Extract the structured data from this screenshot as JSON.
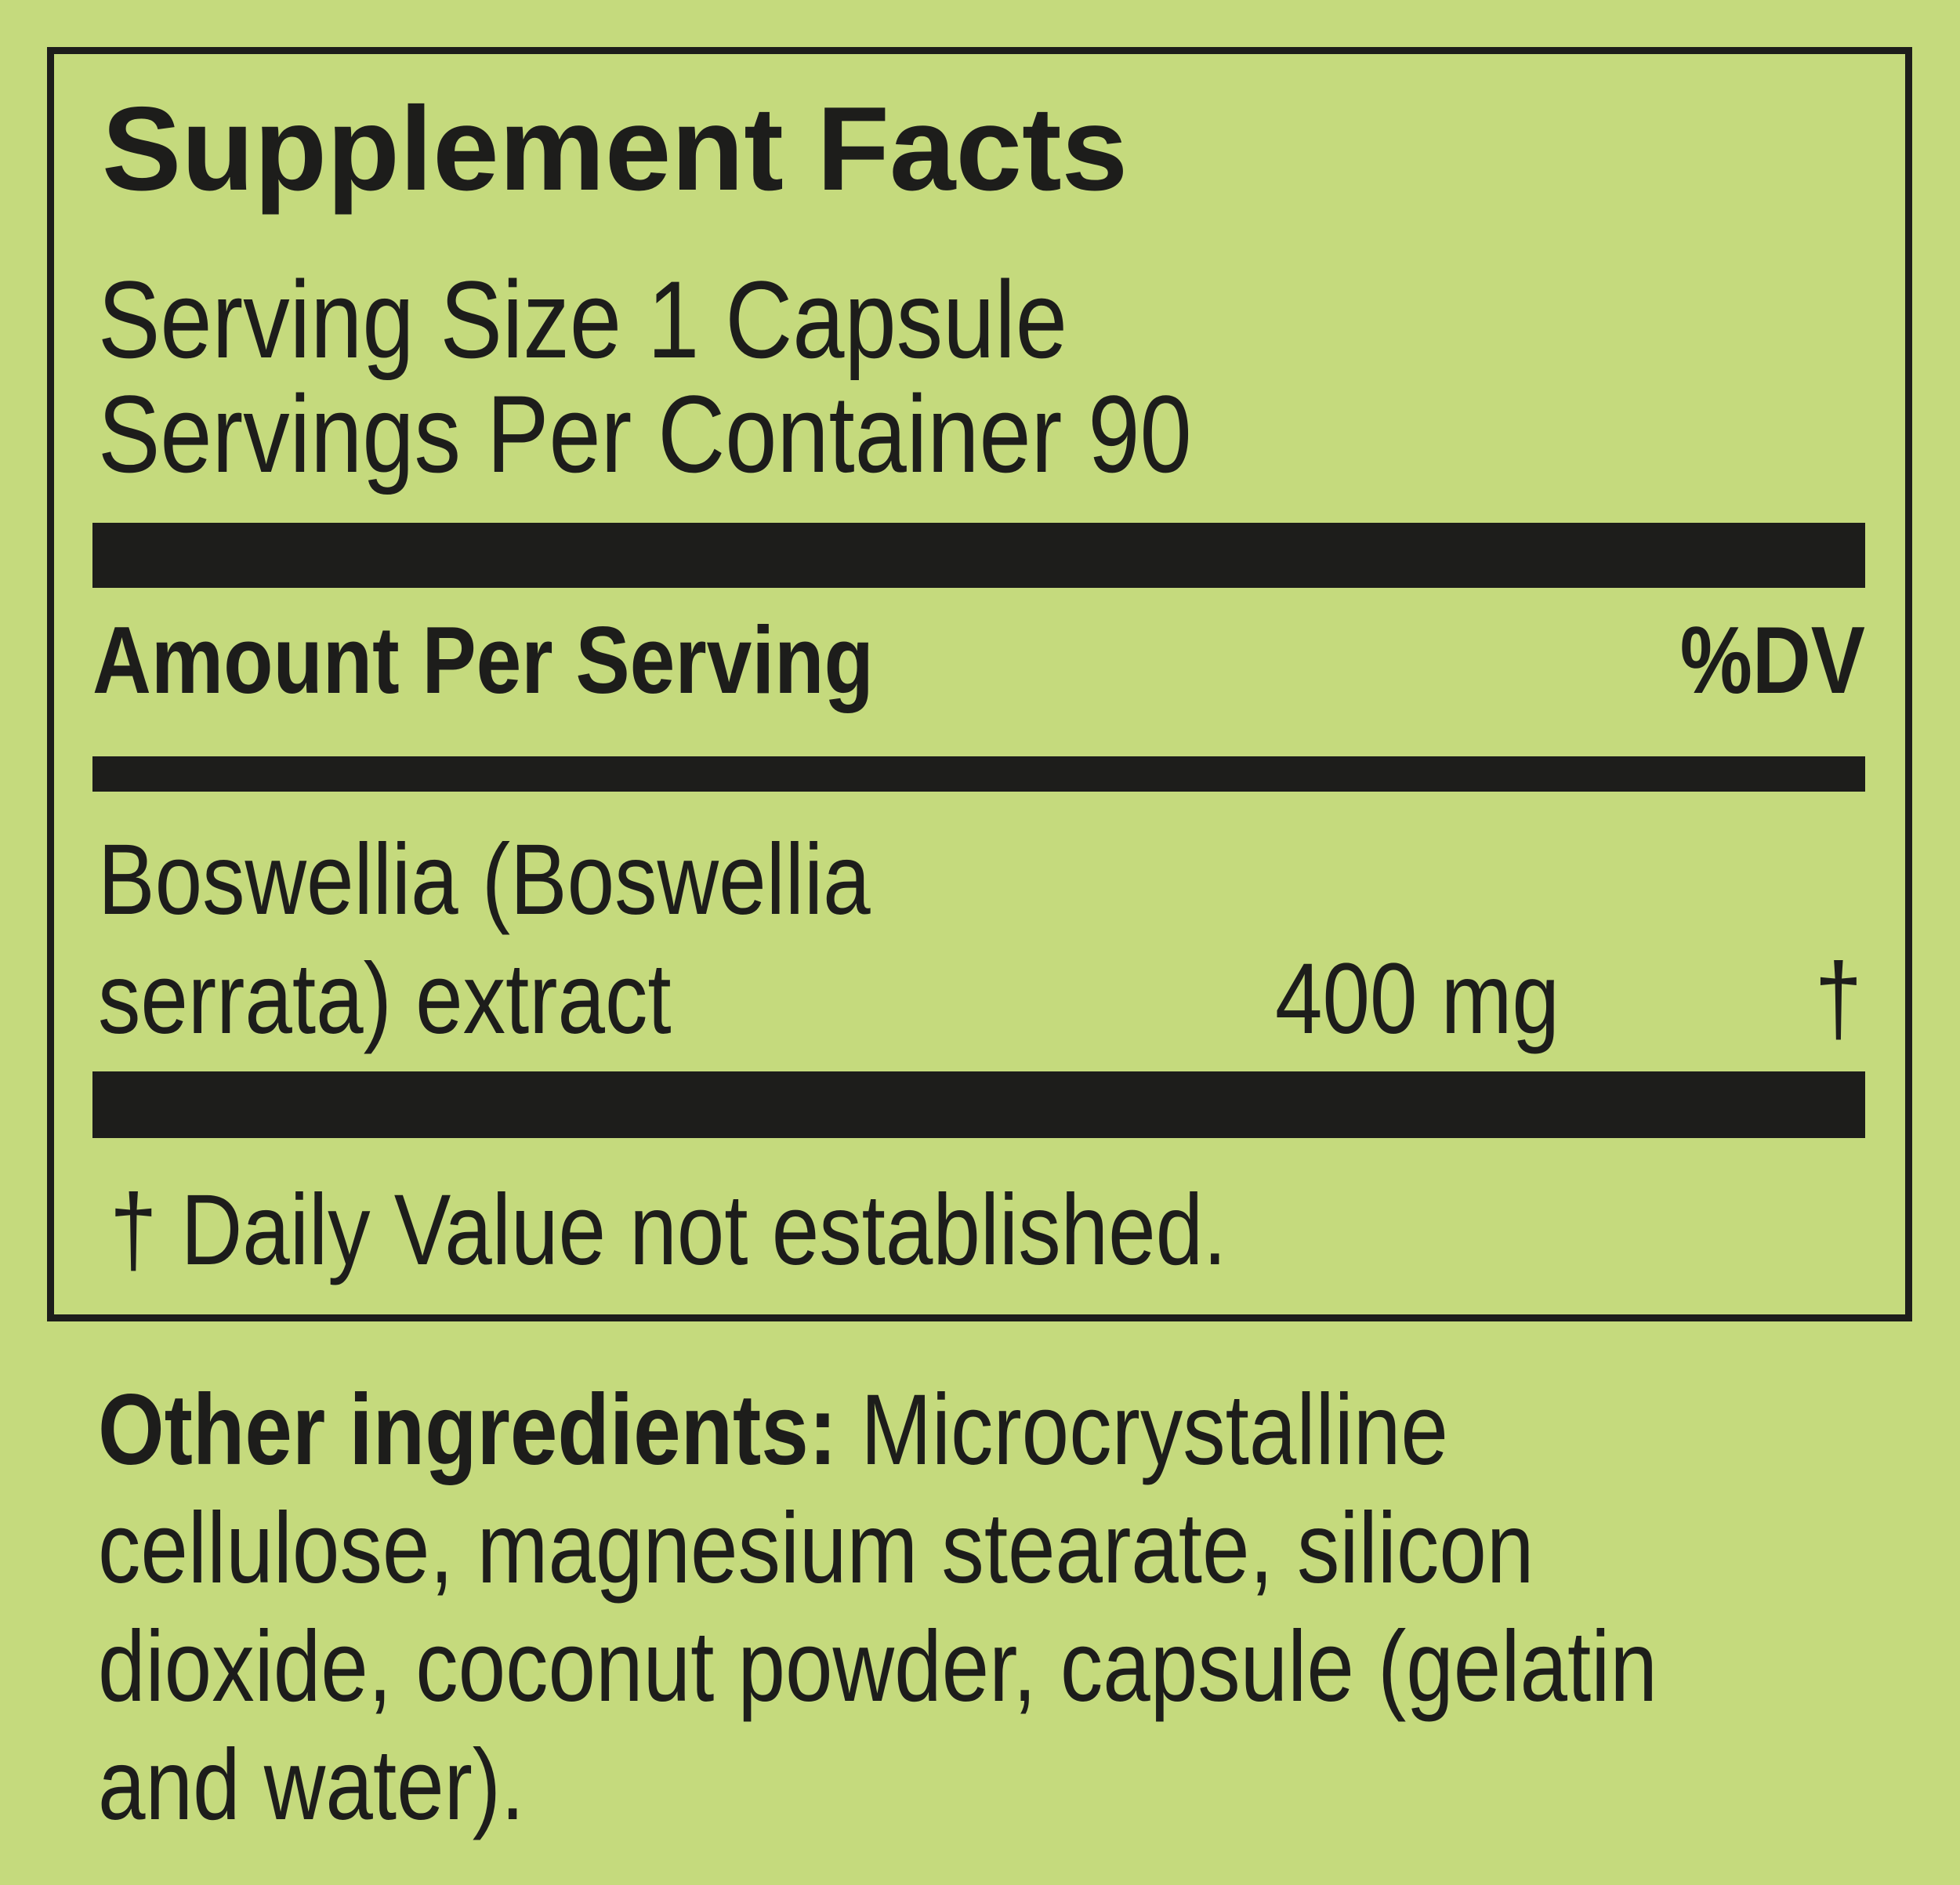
{
  "label": {
    "title": "Supplement Facts",
    "serving_size": "Serving Size 1 Capsule",
    "servings_per_container": "Servings Per Container 90",
    "header": {
      "amount": "Amount Per Serving",
      "dv": "%DV"
    },
    "ingredients": [
      {
        "name_line1": "Boswellia (Boswellia",
        "name_line2": "serrata) extract",
        "amount": "400 mg",
        "dv": "†"
      }
    ],
    "footnote": "† Daily Value not established."
  },
  "other_ingredients": {
    "label": "Other ingredients:",
    "lines": [
      " Microcrystalline",
      "cellulose, magnesium stearate, silicon",
      "dioxide, coconut powder, capsule (gelatin",
      "and water)."
    ]
  },
  "colors": {
    "background": "#c5da7d",
    "ink": "#1d1d1b"
  }
}
